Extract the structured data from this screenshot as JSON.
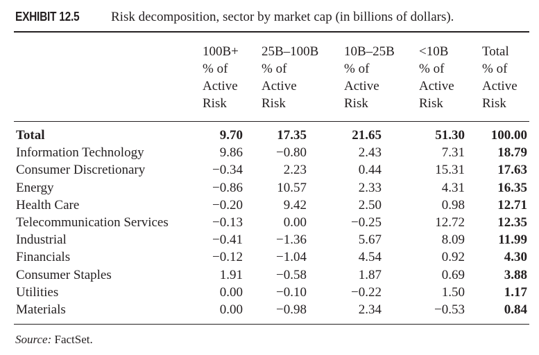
{
  "caption": {
    "label": "EXHIBIT 12.5",
    "text": "Risk decomposition, sector by market cap (in billions of dollars)."
  },
  "headers": [
    {
      "line1": "100B+",
      "line2": "% of",
      "line3": "Active",
      "line4": "Risk"
    },
    {
      "line1": "25B–100B",
      "line2": "% of",
      "line3": "Active",
      "line4": "Risk"
    },
    {
      "line1": "10B–25B",
      "line2": "% of",
      "line3": "Active",
      "line4": "Risk"
    },
    {
      "line1": "<10B",
      "line2": "% of",
      "line3": "Active",
      "line4": "Risk"
    },
    {
      "line1": "Total",
      "line2": "% of",
      "line3": "Active",
      "line4": "Risk"
    }
  ],
  "rows": [
    {
      "label": "Total",
      "v1": "9.70",
      "v2": "17.35",
      "v3": "21.65",
      "v4": "51.30",
      "v5": "100.00"
    },
    {
      "label": "Information Technology",
      "v1": "9.86",
      "v2": "−0.80",
      "v3": "2.43",
      "v4": "7.31",
      "v5": "18.79"
    },
    {
      "label": "Consumer Discretionary",
      "v1": "−0.34",
      "v2": "2.23",
      "v3": "0.44",
      "v4": "15.31",
      "v5": "17.63"
    },
    {
      "label": "Energy",
      "v1": "−0.86",
      "v2": "10.57",
      "v3": "2.33",
      "v4": "4.31",
      "v5": "16.35"
    },
    {
      "label": "Health Care",
      "v1": "−0.20",
      "v2": "9.42",
      "v3": "2.50",
      "v4": "0.98",
      "v5": "12.71"
    },
    {
      "label": "Telecommunication Services",
      "v1": "−0.13",
      "v2": "0.00",
      "v3": "−0.25",
      "v4": "12.72",
      "v5": "12.35"
    },
    {
      "label": "Industrial",
      "v1": "−0.41",
      "v2": "−1.36",
      "v3": "5.67",
      "v4": "8.09",
      "v5": "11.99"
    },
    {
      "label": "Financials",
      "v1": "−0.12",
      "v2": "−1.04",
      "v3": "4.54",
      "v4": "0.92",
      "v5": "4.30"
    },
    {
      "label": "Consumer Staples",
      "v1": "1.91",
      "v2": "−0.58",
      "v3": "1.87",
      "v4": "0.69",
      "v5": "3.88"
    },
    {
      "label": "Utilities",
      "v1": "0.00",
      "v2": "−0.10",
      "v3": "−0.22",
      "v4": "1.50",
      "v5": "1.17"
    },
    {
      "label": "Materials",
      "v1": "0.00",
      "v2": "−0.98",
      "v3": "2.34",
      "v4": "−0.53",
      "v5": "0.84"
    }
  ],
  "source": {
    "label": "Source:",
    "text": "FactSet."
  }
}
